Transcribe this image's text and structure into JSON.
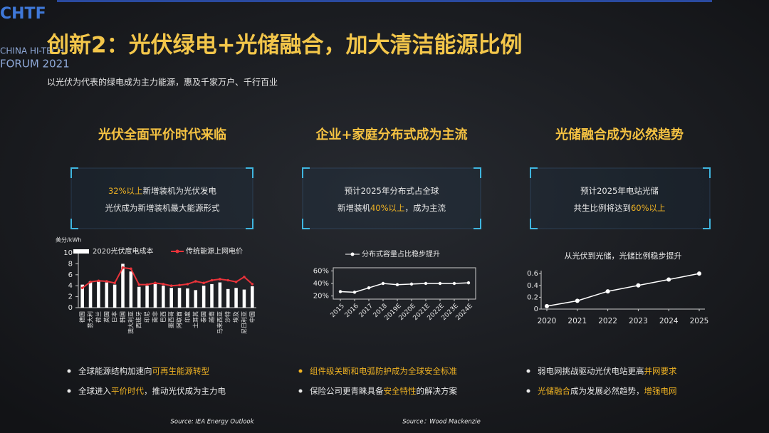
{
  "header": {
    "logo": "CHTF",
    "forum": "CHINA HI-TECH",
    "forum_year": "FORUM 2021",
    "title": "创新2：光伏绿电+光储融合，加大清洁能源比例",
    "subtitle": "以光伏为代表的绿电成为主力能源，惠及千家万户、千行百业"
  },
  "highlight_color": "#f0b323",
  "columns": [
    {
      "title": "光伏全面平价时代来临",
      "box": [
        [
          {
            "text": "32%以上",
            "highlight": true
          },
          {
            "text": "新增装机为光伏发电",
            "highlight": false
          }
        ],
        [
          {
            "text": "光伏成为新增装机最大能源形式",
            "highlight": false
          }
        ]
      ],
      "bullets": [
        [
          {
            "text": "全球能源结构加速向",
            "highlight": false
          },
          {
            "text": "可再生能源转型",
            "highlight": true
          }
        ],
        [
          {
            "text": "全球进入",
            "highlight": false
          },
          {
            "text": "平价时代",
            "highlight": true
          },
          {
            "text": "，推动光伏成为主力电",
            "highlight": false
          }
        ]
      ],
      "source": "Source: IEA Energy Outlook"
    },
    {
      "title": "企业+家庭分布式成为主流",
      "box": [
        [
          {
            "text": "预计2025年分布式占全球",
            "highlight": false
          }
        ],
        [
          {
            "text": "新增装机",
            "highlight": false
          },
          {
            "text": "40%以上",
            "highlight": true
          },
          {
            "text": "，成为主流",
            "highlight": false
          }
        ]
      ],
      "bullets": [
        [
          {
            "text": "组件级关断和电弧防护成为全球安全标准",
            "highlight": true
          }
        ],
        [
          {
            "text": "保险公司更青睐具备",
            "highlight": false
          },
          {
            "text": "安全特性",
            "highlight": true
          },
          {
            "text": "的解决方案",
            "highlight": false
          }
        ]
      ],
      "source": "Source：Wood Mackenzie"
    },
    {
      "title": "光储融合成为必然趋势",
      "box": [
        [
          {
            "text": "预计2025年电站光储",
            "highlight": false
          }
        ],
        [
          {
            "text": "共生比例将达到",
            "highlight": false
          },
          {
            "text": "60%以上",
            "highlight": true
          }
        ]
      ],
      "bullets": [
        [
          {
            "text": "弱电网挑战驱动光伏电站更高",
            "highlight": false
          },
          {
            "text": "并网要求",
            "highlight": true
          }
        ],
        [
          {
            "text": "光储融合",
            "highlight": true
          },
          {
            "text": "成为发展必然趋势，",
            "highlight": false
          },
          {
            "text": "增强电网",
            "highlight": true
          }
        ]
      ],
      "source": null
    }
  ],
  "chart_data": [
    {
      "type": "bar_line",
      "y_label": "美分/kWh",
      "categories": [
        "德国",
        "意大利",
        "荷兰",
        "英国",
        "日本",
        "韩国",
        "澳大利亚",
        "西班牙",
        "印尼",
        "南非",
        "巴西",
        "墨西哥",
        "阿联酋",
        "印度",
        "土耳其",
        "泰国",
        "越南",
        "马来西亚",
        "沙特",
        "埃及",
        "尼日利亚",
        "中国"
      ],
      "series": [
        {
          "name": "2020光伏度电成本",
          "color": "#ffffff",
          "type": "bar",
          "values": [
            4.2,
            4.8,
            4.8,
            4.6,
            4.2,
            8.0,
            6.6,
            3.8,
            4.0,
            4.3,
            4.0,
            3.6,
            3.6,
            3.5,
            3.2,
            4.0,
            4.3,
            4.6,
            3.4,
            3.6,
            3.3,
            3.9
          ]
        },
        {
          "name": "传统能源上网电价",
          "color": "#e8333a",
          "type": "line",
          "values": [
            3.6,
            4.7,
            4.9,
            4.8,
            4.5,
            7.3,
            7.1,
            4.2,
            4.2,
            4.5,
            4.3,
            4.0,
            4.1,
            4.3,
            4.8,
            4.5,
            5.0,
            5.2,
            5.0,
            4.7,
            5.6,
            4.3
          ]
        }
      ],
      "ylim": [
        0,
        10
      ],
      "yticks": [
        0,
        2,
        4,
        6,
        8,
        10
      ]
    },
    {
      "type": "line",
      "series_name": "分布式容量占比稳步提升",
      "color": "#ffffff",
      "categories": [
        "2015",
        "2016",
        "2017",
        "2018",
        "2019E",
        "2020E",
        "2021E",
        "2022E",
        "2023E",
        "2024E"
      ],
      "values": [
        27,
        26,
        33,
        40,
        38,
        39,
        40,
        40,
        40,
        41
      ],
      "ylim": [
        15,
        65
      ],
      "yticks": [
        {
          "value": 20,
          "label": "20%"
        },
        {
          "value": 40,
          "label": "40%"
        },
        {
          "value": 60,
          "label": "60%"
        }
      ]
    },
    {
      "type": "xy_line",
      "title": "从光伏到光储，光储比例稳步提升",
      "color": "#ffffff",
      "x": [
        2020,
        2021,
        2022,
        2023,
        2024,
        2025
      ],
      "values": [
        0.05,
        0.14,
        0.3,
        0.4,
        0.5,
        0.6
      ],
      "xlim": [
        2020,
        2025
      ],
      "xticks": [
        2020,
        2021,
        2022,
        2023,
        2024,
        2025
      ],
      "ylim": [
        0,
        0.65
      ],
      "yticks": [
        0,
        0.2,
        0.4,
        0.6
      ]
    }
  ]
}
